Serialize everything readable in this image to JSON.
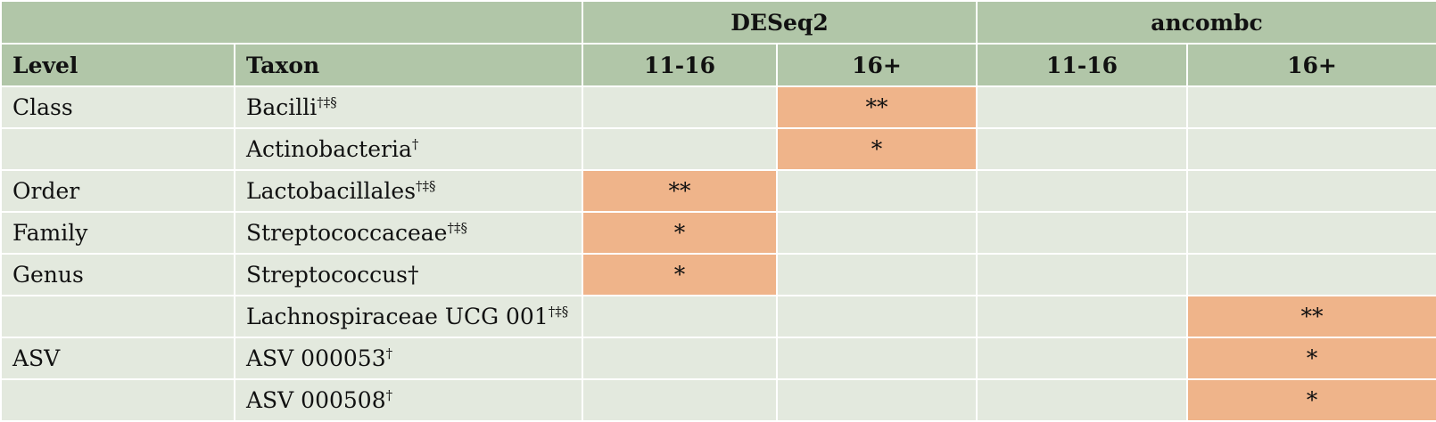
{
  "table": {
    "group_headers": {
      "blank": "",
      "deseq2": "DESeq2",
      "ancombc": "ancombc"
    },
    "column_headers": {
      "level": "Level",
      "taxon": "Taxon",
      "deseq2_11_16": "11-16",
      "deseq2_16plus": "16+",
      "ancombc_11_16": "11-16",
      "ancombc_16plus": "16+"
    },
    "rows": [
      {
        "level": "Class",
        "taxon": "Bacilli",
        "marks": "†‡§",
        "deseq2_11_16": "",
        "deseq2_16plus": "**",
        "ancombc_11_16": "",
        "ancombc_16plus": ""
      },
      {
        "level": "",
        "taxon": "Actinobacteria",
        "marks": "†",
        "deseq2_11_16": "",
        "deseq2_16plus": "*",
        "ancombc_11_16": "",
        "ancombc_16plus": ""
      },
      {
        "level": "Order",
        "taxon": "Lactobacillales",
        "marks": "†‡§",
        "deseq2_11_16": "**",
        "deseq2_16plus": "",
        "ancombc_11_16": "",
        "ancombc_16plus": ""
      },
      {
        "level": "Family",
        "taxon": "Streptococcaceae",
        "marks": "†‡§",
        "deseq2_11_16": "*",
        "deseq2_16plus": "",
        "ancombc_11_16": "",
        "ancombc_16plus": ""
      },
      {
        "level": "Genus",
        "taxon": "Streptococcus†",
        "marks": "",
        "deseq2_11_16": "*",
        "deseq2_16plus": "",
        "ancombc_11_16": "",
        "ancombc_16plus": ""
      },
      {
        "level": "",
        "taxon": "Lachnospiraceae UCG 001",
        "marks": "†‡§",
        "deseq2_11_16": "",
        "deseq2_16plus": "",
        "ancombc_11_16": "",
        "ancombc_16plus": "**"
      },
      {
        "level": "ASV",
        "taxon": "ASV 000053",
        "marks": "†",
        "deseq2_11_16": "",
        "deseq2_16plus": "",
        "ancombc_11_16": "",
        "ancombc_16plus": "*"
      },
      {
        "level": "",
        "taxon": "ASV 000508",
        "marks": "†",
        "deseq2_11_16": "",
        "deseq2_16plus": "",
        "ancombc_11_16": "",
        "ancombc_16plus": "*"
      }
    ]
  },
  "colors": {
    "header_bg": "#b1c6a8",
    "body_bg": "#e3e9de",
    "significant_bg": "#efb48a",
    "grid_line": "#ffffff"
  }
}
